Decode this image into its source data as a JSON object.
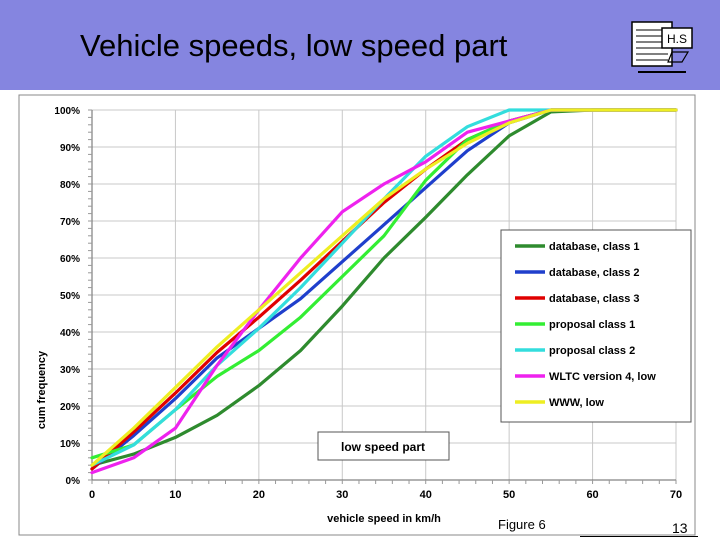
{
  "slide": {
    "title": "Vehicle speeds, low speed part",
    "figure_label": "Figure 6",
    "page_number": "13",
    "logo_text": "H.S"
  },
  "chart_data": {
    "type": "line",
    "xlabel": "vehicle speed in km/h",
    "ylabel": "cum frequency",
    "xlim": [
      0,
      70
    ],
    "ylim": [
      0,
      100
    ],
    "x_ticks": [
      0,
      10,
      20,
      30,
      40,
      50,
      60,
      70
    ],
    "y_ticks": [
      0,
      10,
      20,
      30,
      40,
      50,
      60,
      70,
      80,
      90,
      100
    ],
    "y_tick_labels": [
      "0%",
      "10%",
      "20%",
      "30%",
      "40%",
      "50%",
      "60%",
      "70%",
      "80%",
      "90%",
      "100%"
    ],
    "grid": true,
    "annotation": "low speed part",
    "legend_position": "right",
    "series": [
      {
        "name": "database, class 1",
        "color": "#2e8b2e",
        "points": [
          [
            0,
            4
          ],
          [
            5,
            7
          ],
          [
            10,
            11.5
          ],
          [
            15,
            17.5
          ],
          [
            20,
            25.5
          ],
          [
            25,
            35
          ],
          [
            30,
            47
          ],
          [
            35,
            60
          ],
          [
            40,
            71
          ],
          [
            45,
            82.5
          ],
          [
            50,
            93
          ],
          [
            55,
            99.5
          ],
          [
            60,
            100
          ],
          [
            70,
            100
          ]
        ]
      },
      {
        "name": "database, class 2",
        "color": "#1f3fcc",
        "points": [
          [
            0,
            3
          ],
          [
            5,
            12
          ],
          [
            10,
            22
          ],
          [
            15,
            33
          ],
          [
            20,
            41
          ],
          [
            25,
            49
          ],
          [
            30,
            59
          ],
          [
            35,
            69
          ],
          [
            40,
            79
          ],
          [
            45,
            89
          ],
          [
            50,
            96.5
          ],
          [
            55,
            100
          ],
          [
            60,
            100
          ],
          [
            70,
            100
          ]
        ]
      },
      {
        "name": "database, class 3",
        "color": "#e00000",
        "points": [
          [
            0,
            3
          ],
          [
            5,
            13
          ],
          [
            10,
            23.5
          ],
          [
            15,
            34.5
          ],
          [
            20,
            44
          ],
          [
            25,
            54
          ],
          [
            30,
            64.5
          ],
          [
            35,
            75
          ],
          [
            40,
            84
          ],
          [
            45,
            92
          ],
          [
            50,
            97
          ],
          [
            55,
            100
          ],
          [
            60,
            100
          ],
          [
            70,
            100
          ]
        ]
      },
      {
        "name": "proposal class 1",
        "color": "#33ee33",
        "points": [
          [
            0,
            6
          ],
          [
            5,
            9.5
          ],
          [
            10,
            19
          ],
          [
            15,
            28
          ],
          [
            20,
            35
          ],
          [
            25,
            44
          ],
          [
            30,
            55
          ],
          [
            35,
            66
          ],
          [
            40,
            81
          ],
          [
            45,
            92
          ],
          [
            50,
            97
          ],
          [
            55,
            100
          ],
          [
            60,
            100
          ],
          [
            70,
            100
          ]
        ]
      },
      {
        "name": "proposal class 2",
        "color": "#33dddd",
        "points": [
          [
            0,
            4
          ],
          [
            5,
            9.5
          ],
          [
            10,
            19
          ],
          [
            15,
            31
          ],
          [
            20,
            41
          ],
          [
            25,
            52
          ],
          [
            30,
            64
          ],
          [
            35,
            76
          ],
          [
            40,
            87.5
          ],
          [
            45,
            95.5
          ],
          [
            50,
            100
          ],
          [
            55,
            100
          ],
          [
            60,
            100
          ],
          [
            70,
            100
          ]
        ]
      },
      {
        "name": "WLTC version 4, low",
        "color": "#ee22ee",
        "points": [
          [
            0,
            2
          ],
          [
            5,
            6
          ],
          [
            10,
            14
          ],
          [
            15,
            31
          ],
          [
            20,
            46
          ],
          [
            25,
            60
          ],
          [
            30,
            72.5
          ],
          [
            35,
            80
          ],
          [
            40,
            86
          ],
          [
            45,
            94
          ],
          [
            50,
            97
          ],
          [
            55,
            100
          ],
          [
            60,
            100
          ],
          [
            70,
            100
          ]
        ]
      },
      {
        "name": "WWW, low",
        "color": "#eeee22",
        "points": [
          [
            0,
            4
          ],
          [
            5,
            14
          ],
          [
            10,
            25
          ],
          [
            15,
            36
          ],
          [
            20,
            46
          ],
          [
            25,
            56
          ],
          [
            30,
            66
          ],
          [
            35,
            76
          ],
          [
            40,
            84
          ],
          [
            45,
            91
          ],
          [
            50,
            96.5
          ],
          [
            55,
            100
          ],
          [
            60,
            100
          ],
          [
            70,
            100
          ]
        ]
      }
    ]
  }
}
